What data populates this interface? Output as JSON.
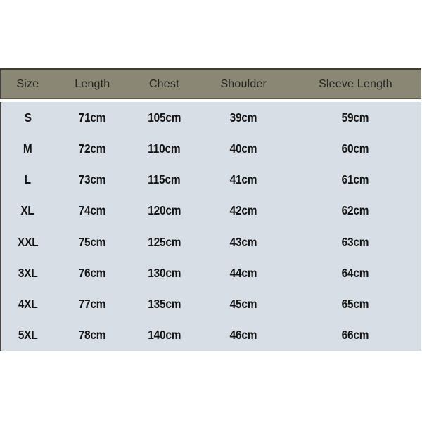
{
  "chart_data": {
    "type": "table",
    "columns": [
      "Size",
      "Length",
      "Chest",
      "Shoulder",
      "Sleeve Length"
    ],
    "rows": [
      {
        "size": "S",
        "length": "71cm",
        "chest": "105cm",
        "shoulder": "39cm",
        "sleeve": "59cm"
      },
      {
        "size": "M",
        "length": "72cm",
        "chest": "110cm",
        "shoulder": "40cm",
        "sleeve": "60cm"
      },
      {
        "size": "L",
        "length": "73cm",
        "chest": "115cm",
        "shoulder": "41cm",
        "sleeve": "61cm"
      },
      {
        "size": "XL",
        "length": "74cm",
        "chest": "120cm",
        "shoulder": "42cm",
        "sleeve": "62cm"
      },
      {
        "size": "XXL",
        "length": "75cm",
        "chest": "125cm",
        "shoulder": "43cm",
        "sleeve": "63cm"
      },
      {
        "size": "3XL",
        "length": "76cm",
        "chest": "130cm",
        "shoulder": "44cm",
        "sleeve": "64cm"
      },
      {
        "size": "4XL",
        "length": "77cm",
        "chest": "135cm",
        "shoulder": "45cm",
        "sleeve": "65cm"
      },
      {
        "size": "5XL",
        "length": "78cm",
        "chest": "140cm",
        "shoulder": "46cm",
        "sleeve": "66cm"
      }
    ]
  },
  "colors": {
    "header_bg": "#8b8775",
    "header_text": "#24231d",
    "header_border_top": "#3f3e2e",
    "header_border_bottom": "#5e5b48",
    "body_bg": "#d8dee6",
    "body_text": "#141414",
    "panel_edge": "#44443c"
  }
}
